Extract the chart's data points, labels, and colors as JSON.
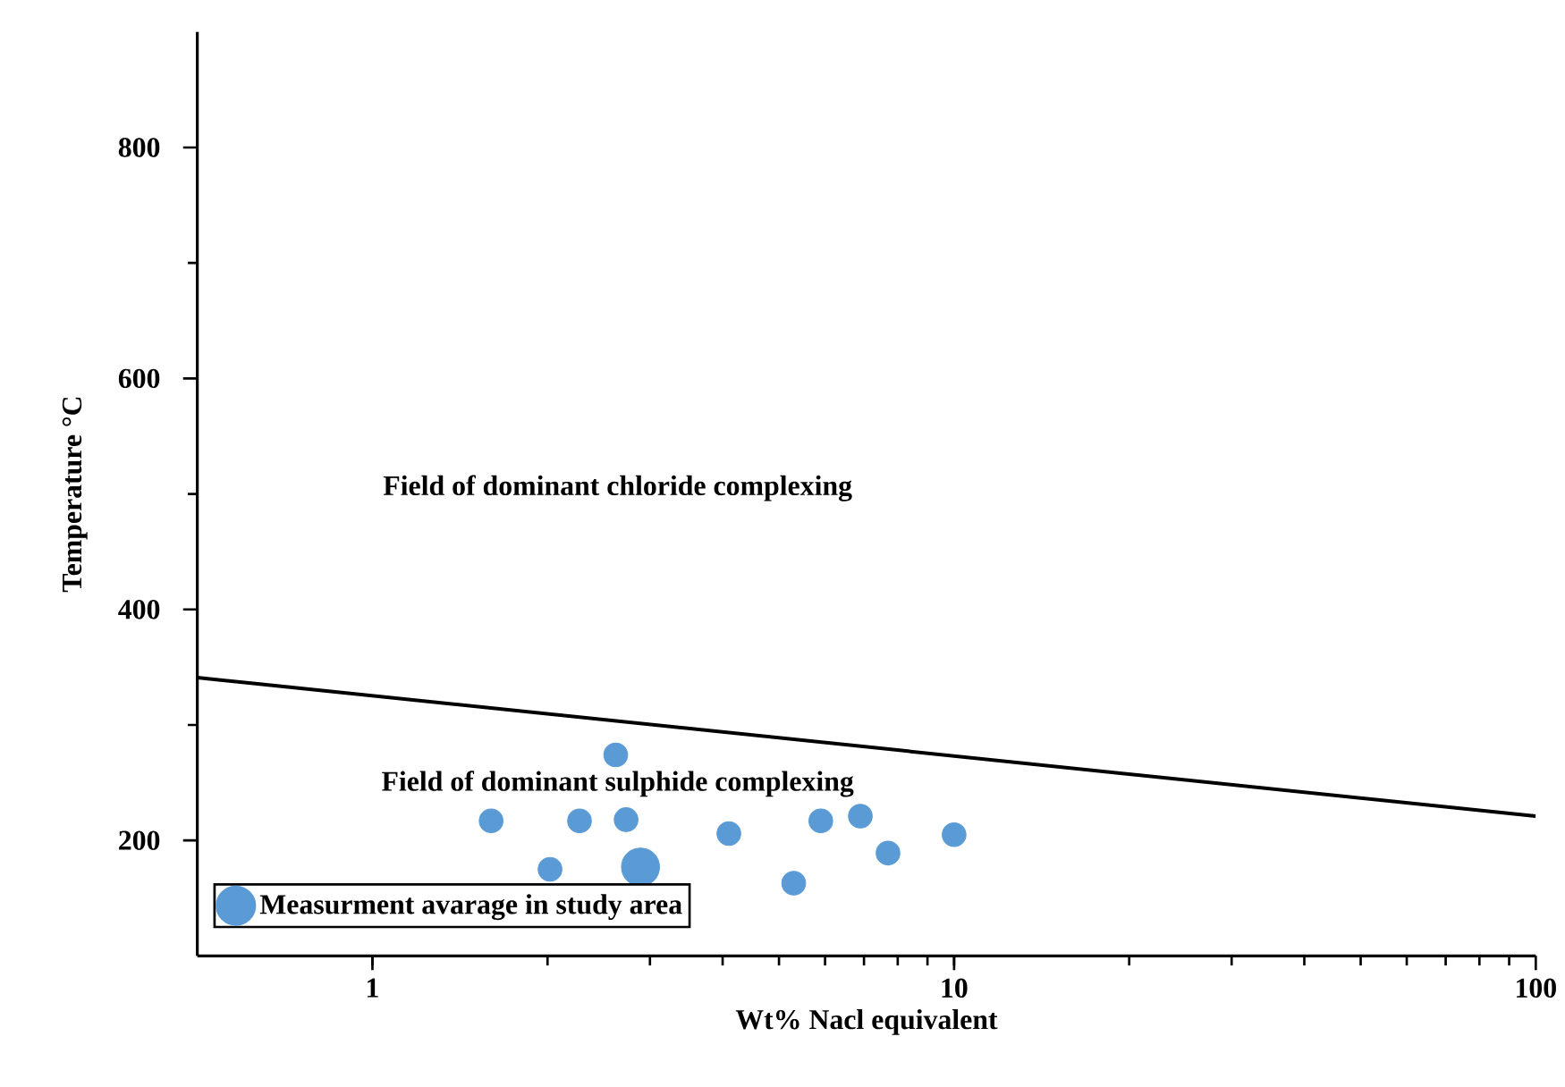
{
  "chart_data": {
    "type": "scatter",
    "xlabel": "Wt% Nacl equivalent",
    "ylabel": "Temperature °C",
    "log": "x",
    "xlim": [
      0.5,
      100
    ],
    "ylim": [
      100,
      900
    ],
    "xticks": [
      1,
      10,
      100
    ],
    "yticks": [
      200,
      400,
      600,
      800
    ],
    "legend": "bottom left",
    "grid": false,
    "marker": "circle",
    "annotations": [
      "Field of dominant chloride complexing",
      "Field of dominant sulphide complexing"
    ],
    "series": [
      {
        "color": "#5b9bd5",
        "x": [
          1.6,
          2.02,
          2.27,
          2.62,
          2.73,
          4.1,
          5.3,
          5.9,
          6.9,
          7.7,
          10
        ],
        "values": [
          217,
          175,
          217,
          274,
          218,
          206,
          163,
          217,
          221,
          189,
          205
        ]
      },
      {
        "name": "Measurment avarage in study area",
        "color": "#5b9bd5",
        "x": [
          2.89
        ],
        "values": [
          177
        ]
      },
      {
        "type": "line",
        "color": "#000000",
        "marker": "none",
        "line_style": "solid",
        "x": [
          0.5,
          100
        ],
        "values": [
          341,
          221
        ]
      }
    ]
  }
}
